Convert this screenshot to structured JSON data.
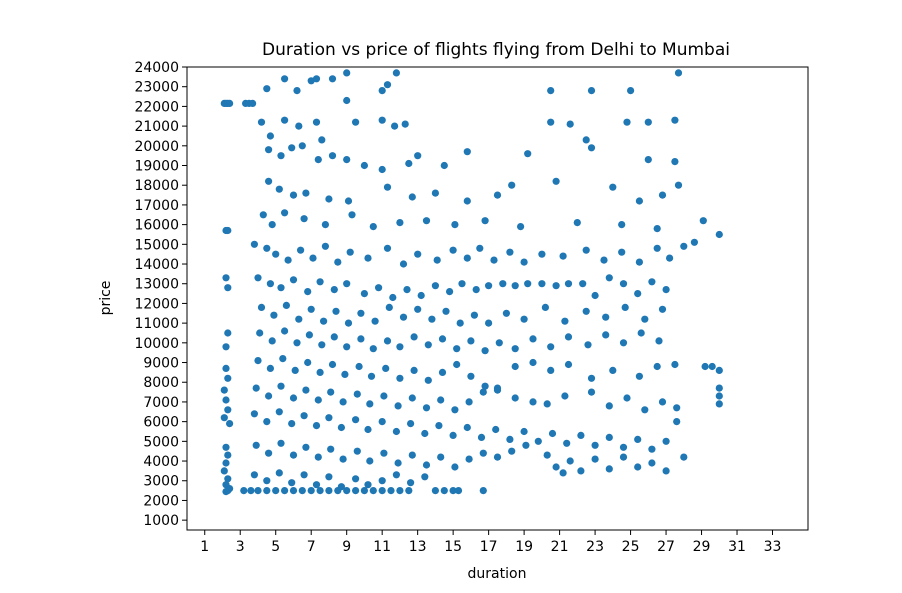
{
  "chart_data": {
    "type": "scatter",
    "title": "Duration vs price of flights flying from Delhi to Mumbai",
    "xlabel": "duration",
    "ylabel": "price",
    "xlim": [
      0,
      35
    ],
    "ylim": [
      500,
      24000
    ],
    "xticks": [
      1,
      3,
      5,
      7,
      9,
      11,
      13,
      15,
      17,
      19,
      21,
      23,
      25,
      27,
      29,
      31,
      33
    ],
    "yticks": [
      1000,
      2000,
      3000,
      4000,
      5000,
      6000,
      7000,
      8000,
      9000,
      10000,
      11000,
      12000,
      13000,
      14000,
      15000,
      16000,
      17000,
      18000,
      19000,
      20000,
      21000,
      22000,
      23000,
      24000
    ],
    "grid": false,
    "marker_color": "#1f77b4",
    "points": [
      [
        2.1,
        22150
      ],
      [
        2.2,
        22150
      ],
      [
        2.3,
        22150
      ],
      [
        2.4,
        22150
      ],
      [
        3.3,
        22150
      ],
      [
        3.5,
        22150
      ],
      [
        3.7,
        22150
      ],
      [
        2.2,
        15700
      ],
      [
        2.3,
        15700
      ],
      [
        2.2,
        13300
      ],
      [
        2.3,
        12800
      ],
      [
        2.3,
        10500
      ],
      [
        2.2,
        9800
      ],
      [
        2.2,
        8700
      ],
      [
        2.3,
        8200
      ],
      [
        2.1,
        7600
      ],
      [
        2.2,
        7100
      ],
      [
        2.3,
        6600
      ],
      [
        2.1,
        6200
      ],
      [
        2.4,
        5900
      ],
      [
        2.2,
        4700
      ],
      [
        2.3,
        4300
      ],
      [
        2.2,
        3900
      ],
      [
        2.1,
        3500
      ],
      [
        2.3,
        3100
      ],
      [
        2.2,
        2800
      ],
      [
        2.4,
        2600
      ],
      [
        2.2,
        2450
      ],
      [
        2.3,
        2500
      ],
      [
        3.2,
        2500
      ],
      [
        3.6,
        2500
      ],
      [
        4.0,
        2500
      ],
      [
        4.5,
        2500
      ],
      [
        5.0,
        2500
      ],
      [
        5.5,
        2500
      ],
      [
        6.0,
        2500
      ],
      [
        6.5,
        2500
      ],
      [
        7.0,
        2500
      ],
      [
        7.5,
        2500
      ],
      [
        8.0,
        2500
      ],
      [
        8.5,
        2500
      ],
      [
        9.0,
        2500
      ],
      [
        9.5,
        2500
      ],
      [
        10.0,
        2500
      ],
      [
        10.5,
        2500
      ],
      [
        11.0,
        2500
      ],
      [
        11.5,
        2500
      ],
      [
        12.0,
        2500
      ],
      [
        12.5,
        2500
      ],
      [
        14.0,
        2500
      ],
      [
        14.5,
        2500
      ],
      [
        15.0,
        2500
      ],
      [
        15.3,
        2500
      ],
      [
        16.7,
        2500
      ],
      [
        5.5,
        23400
      ],
      [
        6.2,
        22800
      ],
      [
        7.0,
        23300
      ],
      [
        7.3,
        23400
      ],
      [
        8.2,
        23400
      ],
      [
        9.0,
        23700
      ],
      [
        9.0,
        22300
      ],
      [
        11.0,
        22800
      ],
      [
        11.3,
        23100
      ],
      [
        11.8,
        23700
      ],
      [
        20.5,
        22800
      ],
      [
        22.8,
        22800
      ],
      [
        25.0,
        22800
      ],
      [
        27.7,
        23700
      ],
      [
        4.5,
        22900
      ],
      [
        4.2,
        21200
      ],
      [
        4.7,
        20500
      ],
      [
        5.5,
        21300
      ],
      [
        6.3,
        21000
      ],
      [
        7.3,
        21200
      ],
      [
        7.6,
        20300
      ],
      [
        9.5,
        21200
      ],
      [
        11.0,
        21300
      ],
      [
        11.7,
        21000
      ],
      [
        12.3,
        21100
      ],
      [
        20.5,
        21200
      ],
      [
        21.6,
        21100
      ],
      [
        22.5,
        20300
      ],
      [
        24.8,
        21200
      ],
      [
        26.0,
        21200
      ],
      [
        27.5,
        21300
      ],
      [
        4.6,
        19800
      ],
      [
        5.3,
        19500
      ],
      [
        5.9,
        19900
      ],
      [
        6.5,
        20000
      ],
      [
        7.4,
        19300
      ],
      [
        8.2,
        19500
      ],
      [
        9.0,
        19300
      ],
      [
        10.0,
        19000
      ],
      [
        11.0,
        18800
      ],
      [
        12.5,
        19100
      ],
      [
        13.0,
        19500
      ],
      [
        14.5,
        19000
      ],
      [
        15.8,
        19700
      ],
      [
        19.2,
        19600
      ],
      [
        22.8,
        19900
      ],
      [
        26.0,
        19300
      ],
      [
        27.5,
        19200
      ],
      [
        4.6,
        18200
      ],
      [
        5.2,
        17800
      ],
      [
        6.0,
        17500
      ],
      [
        6.7,
        17600
      ],
      [
        8.0,
        17300
      ],
      [
        9.1,
        17200
      ],
      [
        11.3,
        17900
      ],
      [
        12.7,
        17400
      ],
      [
        14.0,
        17600
      ],
      [
        15.8,
        17200
      ],
      [
        17.5,
        17500
      ],
      [
        18.3,
        18000
      ],
      [
        20.8,
        18200
      ],
      [
        24.0,
        17900
      ],
      [
        25.5,
        17200
      ],
      [
        26.8,
        17500
      ],
      [
        27.7,
        18000
      ],
      [
        4.3,
        16500
      ],
      [
        4.8,
        16000
      ],
      [
        5.5,
        16600
      ],
      [
        6.6,
        16300
      ],
      [
        7.8,
        16000
      ],
      [
        9.3,
        16500
      ],
      [
        10.5,
        15900
      ],
      [
        12.0,
        16100
      ],
      [
        13.5,
        16200
      ],
      [
        15.1,
        16000
      ],
      [
        16.8,
        16200
      ],
      [
        18.8,
        15900
      ],
      [
        22.0,
        16100
      ],
      [
        24.5,
        16000
      ],
      [
        26.5,
        15800
      ],
      [
        29.1,
        16200
      ],
      [
        30.0,
        15500
      ],
      [
        3.8,
        15000
      ],
      [
        4.5,
        14800
      ],
      [
        5.0,
        14500
      ],
      [
        5.7,
        14200
      ],
      [
        6.4,
        14700
      ],
      [
        7.1,
        14300
      ],
      [
        7.8,
        14900
      ],
      [
        8.5,
        14100
      ],
      [
        9.2,
        14600
      ],
      [
        10.2,
        14300
      ],
      [
        11.3,
        14800
      ],
      [
        12.2,
        14000
      ],
      [
        13.0,
        14500
      ],
      [
        14.1,
        14200
      ],
      [
        15.0,
        14700
      ],
      [
        15.8,
        14300
      ],
      [
        16.5,
        14800
      ],
      [
        17.3,
        14200
      ],
      [
        18.2,
        14600
      ],
      [
        19.0,
        14100
      ],
      [
        20.0,
        14500
      ],
      [
        21.2,
        14400
      ],
      [
        22.5,
        14700
      ],
      [
        23.5,
        14200
      ],
      [
        24.5,
        14600
      ],
      [
        25.5,
        14100
      ],
      [
        26.5,
        14800
      ],
      [
        27.2,
        14300
      ],
      [
        28.0,
        14900
      ],
      [
        28.6,
        15100
      ],
      [
        4.0,
        13300
      ],
      [
        4.7,
        13000
      ],
      [
        5.3,
        12800
      ],
      [
        6.0,
        13200
      ],
      [
        6.8,
        12600
      ],
      [
        7.5,
        13100
      ],
      [
        8.3,
        12700
      ],
      [
        9.0,
        13000
      ],
      [
        10.0,
        12500
      ],
      [
        10.8,
        12800
      ],
      [
        11.6,
        12300
      ],
      [
        12.4,
        12700
      ],
      [
        13.2,
        12400
      ],
      [
        14.0,
        12900
      ],
      [
        14.8,
        12600
      ],
      [
        15.5,
        13000
      ],
      [
        16.3,
        12700
      ],
      [
        17.0,
        12900
      ],
      [
        17.8,
        13000
      ],
      [
        18.5,
        12900
      ],
      [
        19.2,
        13000
      ],
      [
        20.0,
        13000
      ],
      [
        20.8,
        12900
      ],
      [
        21.5,
        13000
      ],
      [
        22.3,
        13000
      ],
      [
        23.0,
        12400
      ],
      [
        23.8,
        13300
      ],
      [
        24.6,
        13000
      ],
      [
        25.4,
        12500
      ],
      [
        26.2,
        13100
      ],
      [
        27.0,
        12700
      ],
      [
        4.2,
        11800
      ],
      [
        4.9,
        11400
      ],
      [
        5.6,
        11900
      ],
      [
        6.3,
        11200
      ],
      [
        7.0,
        11700
      ],
      [
        7.7,
        11100
      ],
      [
        8.4,
        11600
      ],
      [
        9.1,
        11000
      ],
      [
        9.8,
        11500
      ],
      [
        10.6,
        11100
      ],
      [
        11.4,
        11800
      ],
      [
        12.2,
        11300
      ],
      [
        13.0,
        11700
      ],
      [
        13.8,
        11200
      ],
      [
        14.6,
        11600
      ],
      [
        15.4,
        11000
      ],
      [
        16.2,
        11400
      ],
      [
        17.0,
        11000
      ],
      [
        18.0,
        11500
      ],
      [
        19.0,
        11200
      ],
      [
        20.2,
        11800
      ],
      [
        21.3,
        11100
      ],
      [
        22.5,
        11600
      ],
      [
        23.6,
        11300
      ],
      [
        24.7,
        11800
      ],
      [
        25.8,
        11200
      ],
      [
        26.8,
        11700
      ],
      [
        4.1,
        10500
      ],
      [
        4.8,
        10100
      ],
      [
        5.5,
        10600
      ],
      [
        6.2,
        10000
      ],
      [
        6.9,
        10400
      ],
      [
        7.6,
        9900
      ],
      [
        8.3,
        10300
      ],
      [
        9.0,
        9800
      ],
      [
        9.8,
        10200
      ],
      [
        10.5,
        9700
      ],
      [
        11.3,
        10100
      ],
      [
        12.0,
        9800
      ],
      [
        12.8,
        10300
      ],
      [
        13.6,
        9900
      ],
      [
        14.4,
        10200
      ],
      [
        15.2,
        9700
      ],
      [
        16.0,
        10100
      ],
      [
        16.8,
        9600
      ],
      [
        17.6,
        10000
      ],
      [
        18.5,
        9700
      ],
      [
        19.5,
        10200
      ],
      [
        20.5,
        9800
      ],
      [
        21.5,
        10300
      ],
      [
        22.6,
        9900
      ],
      [
        23.6,
        10400
      ],
      [
        24.6,
        10000
      ],
      [
        25.6,
        10500
      ],
      [
        26.6,
        10100
      ],
      [
        4.0,
        9100
      ],
      [
        4.7,
        8700
      ],
      [
        5.4,
        9200
      ],
      [
        6.1,
        8600
      ],
      [
        6.8,
        9000
      ],
      [
        7.5,
        8500
      ],
      [
        8.2,
        8900
      ],
      [
        8.9,
        8400
      ],
      [
        9.7,
        8800
      ],
      [
        10.4,
        8300
      ],
      [
        11.2,
        8700
      ],
      [
        12.0,
        8200
      ],
      [
        12.8,
        8600
      ],
      [
        13.6,
        8100
      ],
      [
        14.4,
        8500
      ],
      [
        15.2,
        8900
      ],
      [
        16.0,
        8300
      ],
      [
        16.8,
        7800
      ],
      [
        17.5,
        7600
      ],
      [
        18.5,
        8800
      ],
      [
        19.5,
        9000
      ],
      [
        20.5,
        8600
      ],
      [
        21.5,
        8900
      ],
      [
        22.8,
        8200
      ],
      [
        24.0,
        8600
      ],
      [
        25.5,
        8300
      ],
      [
        26.5,
        8800
      ],
      [
        27.5,
        8900
      ],
      [
        29.2,
        8800
      ],
      [
        29.6,
        8800
      ],
      [
        30.0,
        8600
      ],
      [
        3.9,
        7700
      ],
      [
        4.6,
        7300
      ],
      [
        5.3,
        7800
      ],
      [
        6.0,
        7200
      ],
      [
        6.7,
        7600
      ],
      [
        7.4,
        7100
      ],
      [
        8.1,
        7500
      ],
      [
        8.8,
        7000
      ],
      [
        9.6,
        7400
      ],
      [
        10.3,
        6900
      ],
      [
        11.1,
        7300
      ],
      [
        11.9,
        6800
      ],
      [
        12.7,
        7200
      ],
      [
        13.5,
        6700
      ],
      [
        14.3,
        7100
      ],
      [
        15.1,
        6600
      ],
      [
        15.9,
        7000
      ],
      [
        16.7,
        7500
      ],
      [
        17.5,
        7700
      ],
      [
        18.5,
        7200
      ],
      [
        19.5,
        7000
      ],
      [
        20.3,
        6900
      ],
      [
        21.3,
        7300
      ],
      [
        22.8,
        7500
      ],
      [
        23.8,
        6800
      ],
      [
        24.8,
        7200
      ],
      [
        25.8,
        6600
      ],
      [
        26.8,
        7000
      ],
      [
        27.6,
        6700
      ],
      [
        30.0,
        7700
      ],
      [
        30.0,
        7300
      ],
      [
        30.0,
        6900
      ],
      [
        3.8,
        6400
      ],
      [
        4.5,
        6000
      ],
      [
        5.2,
        6500
      ],
      [
        5.9,
        5900
      ],
      [
        6.6,
        6300
      ],
      [
        7.3,
        5800
      ],
      [
        8.0,
        6200
      ],
      [
        8.7,
        5700
      ],
      [
        9.5,
        6100
      ],
      [
        10.2,
        5600
      ],
      [
        11.0,
        6000
      ],
      [
        11.8,
        5500
      ],
      [
        12.6,
        5900
      ],
      [
        13.4,
        5400
      ],
      [
        14.2,
        5800
      ],
      [
        15.0,
        5300
      ],
      [
        15.8,
        5700
      ],
      [
        16.6,
        5200
      ],
      [
        17.4,
        5600
      ],
      [
        18.2,
        5100
      ],
      [
        19.0,
        5500
      ],
      [
        19.8,
        5000
      ],
      [
        20.6,
        5400
      ],
      [
        21.4,
        4900
      ],
      [
        22.2,
        5300
      ],
      [
        23.0,
        4800
      ],
      [
        23.8,
        5200
      ],
      [
        24.6,
        4700
      ],
      [
        25.4,
        5100
      ],
      [
        26.2,
        4600
      ],
      [
        27.0,
        5000
      ],
      [
        27.6,
        6000
      ],
      [
        3.9,
        4800
      ],
      [
        4.6,
        4400
      ],
      [
        5.3,
        4900
      ],
      [
        6.0,
        4300
      ],
      [
        6.7,
        4700
      ],
      [
        7.4,
        4200
      ],
      [
        8.1,
        4600
      ],
      [
        8.8,
        4100
      ],
      [
        9.6,
        4500
      ],
      [
        10.3,
        4000
      ],
      [
        11.1,
        4400
      ],
      [
        11.9,
        3900
      ],
      [
        12.7,
        4300
      ],
      [
        13.5,
        3800
      ],
      [
        14.3,
        4200
      ],
      [
        15.1,
        3700
      ],
      [
        15.9,
        4100
      ],
      [
        16.7,
        4400
      ],
      [
        17.5,
        4200
      ],
      [
        18.3,
        4500
      ],
      [
        19.1,
        4800
      ],
      [
        20.3,
        4300
      ],
      [
        20.8,
        3700
      ],
      [
        21.2,
        3400
      ],
      [
        21.6,
        4000
      ],
      [
        22.2,
        3500
      ],
      [
        23.0,
        4100
      ],
      [
        23.8,
        3600
      ],
      [
        24.6,
        4200
      ],
      [
        25.4,
        3700
      ],
      [
        26.2,
        3900
      ],
      [
        27.0,
        3500
      ],
      [
        28.0,
        4200
      ],
      [
        3.8,
        3300
      ],
      [
        4.5,
        3000
      ],
      [
        5.2,
        3400
      ],
      [
        5.9,
        2900
      ],
      [
        6.6,
        3300
      ],
      [
        7.3,
        2800
      ],
      [
        8.0,
        3200
      ],
      [
        8.7,
        2700
      ],
      [
        9.5,
        3100
      ],
      [
        10.2,
        2800
      ],
      [
        11.0,
        3000
      ],
      [
        11.8,
        3300
      ],
      [
        12.6,
        2900
      ],
      [
        13.4,
        3200
      ]
    ]
  }
}
